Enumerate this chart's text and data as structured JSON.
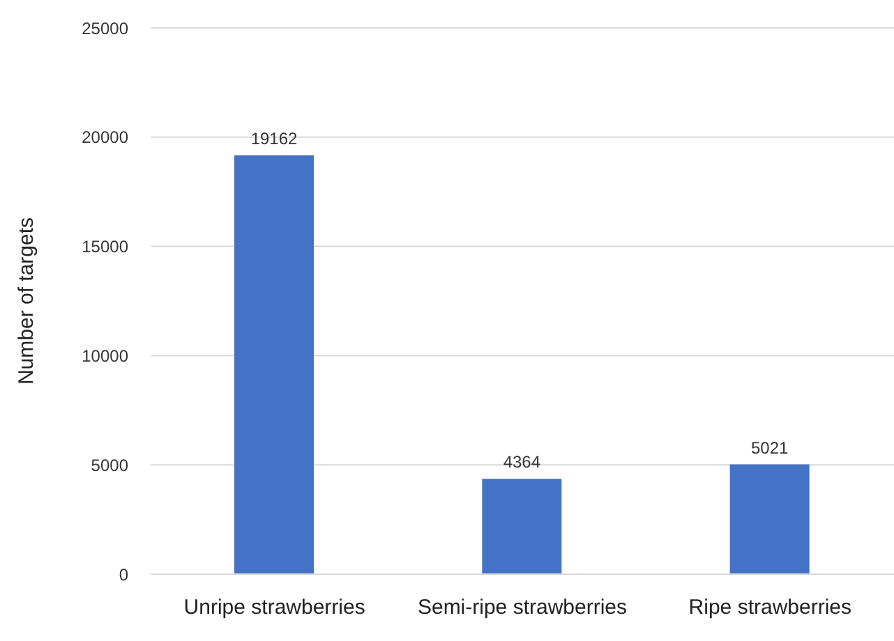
{
  "chart_data": {
    "type": "bar",
    "ylabel": "Number of targets",
    "categories": [
      "Unripe strawberries",
      "Semi-ripe strawberries",
      "Ripe strawberries"
    ],
    "values": [
      19162,
      4364,
      5021
    ],
    "color": "#4472c4",
    "ylim": [
      0,
      25000
    ],
    "yticks": [
      0,
      5000,
      10000,
      15000,
      20000,
      25000
    ],
    "grid": "y",
    "data_labels": true
  }
}
